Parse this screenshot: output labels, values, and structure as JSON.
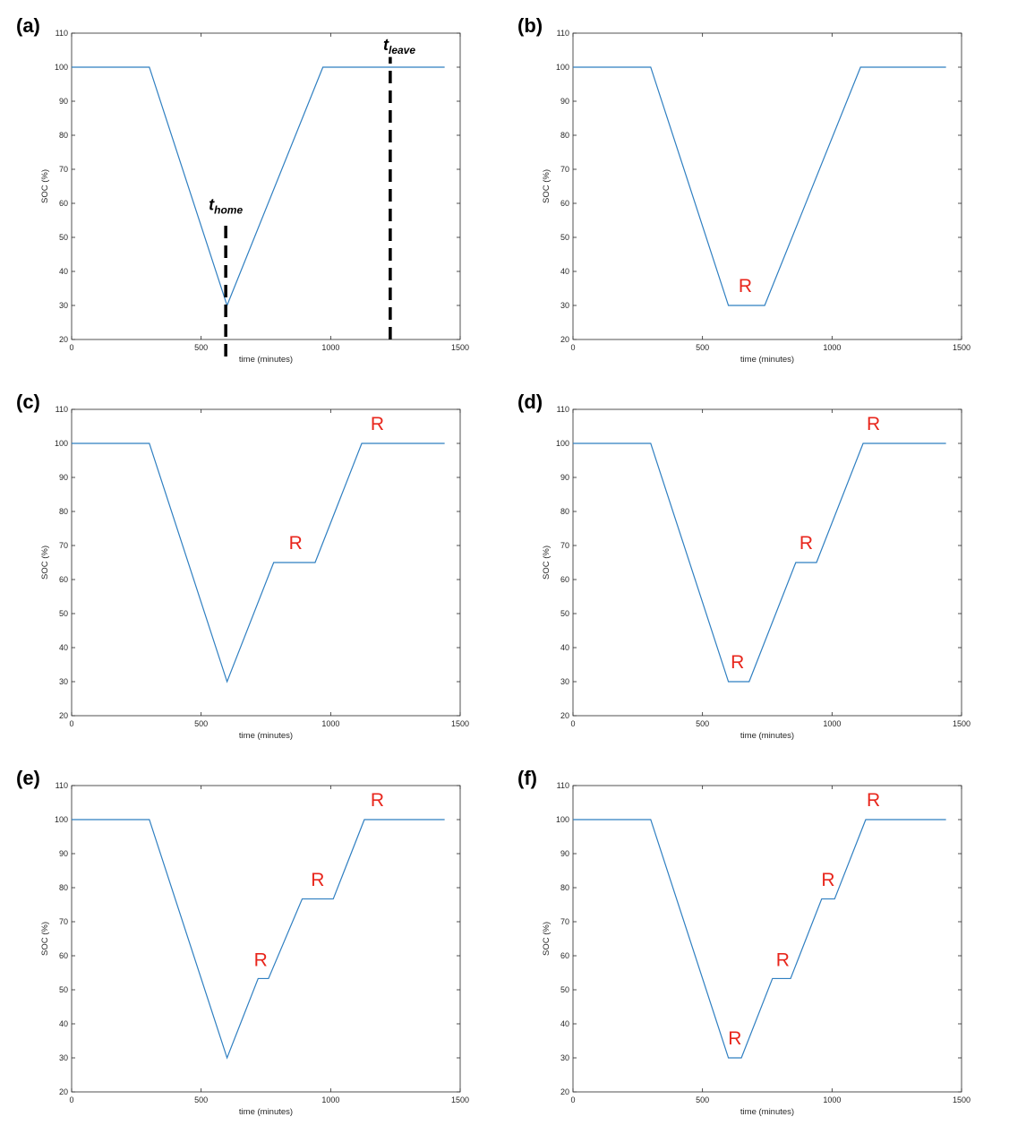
{
  "colors": {
    "line": "#2f7fc1",
    "annotation": "#e8261c",
    "marker": "#000000",
    "axis": "#262626"
  },
  "chart_data": [
    {
      "panel": "(a)",
      "type": "line",
      "xlabel": "time (minutes)",
      "ylabel": "SOC (%)",
      "xlim": [
        0,
        1500
      ],
      "ylim": [
        20,
        110
      ],
      "xticks": [
        0,
        500,
        1000,
        1500
      ],
      "yticks": [
        20,
        30,
        40,
        50,
        60,
        70,
        80,
        90,
        100,
        110
      ],
      "grid": false,
      "x": [
        0,
        300,
        600,
        970,
        1440
      ],
      "y": [
        100,
        100,
        30,
        100,
        100
      ],
      "annotations": [],
      "markers": [
        {
          "x": 595,
          "y_from": 15,
          "y_to": 55,
          "label": "t",
          "sub": "home",
          "label_x": 595,
          "label_y": 58
        },
        {
          "x": 1230,
          "y_from": 20,
          "y_to": 103,
          "label": "t",
          "sub": "leave",
          "label_x": 1265,
          "label_y": 105
        }
      ]
    },
    {
      "panel": "(b)",
      "type": "line",
      "xlabel": "time (minutes)",
      "ylabel": "SOC (%)",
      "xlim": [
        0,
        1500
      ],
      "ylim": [
        20,
        110
      ],
      "xticks": [
        0,
        500,
        1000,
        1500
      ],
      "yticks": [
        20,
        30,
        40,
        50,
        60,
        70,
        80,
        90,
        100,
        110
      ],
      "grid": false,
      "x": [
        0,
        300,
        600,
        740,
        1110,
        1440
      ],
      "y": [
        100,
        100,
        30,
        30,
        100,
        100
      ],
      "annotations": [
        {
          "text": "R",
          "x": 665,
          "y": 34
        }
      ],
      "markers": []
    },
    {
      "panel": "(c)",
      "type": "line",
      "xlabel": "time (minutes)",
      "ylabel": "SOC (%)",
      "xlim": [
        0,
        1500
      ],
      "ylim": [
        20,
        110
      ],
      "xticks": [
        0,
        500,
        1000,
        1500
      ],
      "yticks": [
        20,
        30,
        40,
        50,
        60,
        70,
        80,
        90,
        100,
        110
      ],
      "grid": false,
      "x": [
        0,
        300,
        600,
        780,
        940,
        1120,
        1440
      ],
      "y": [
        100,
        100,
        30,
        65,
        65,
        100,
        100
      ],
      "annotations": [
        {
          "text": "R",
          "x": 865,
          "y": 69
        },
        {
          "text": "R",
          "x": 1180,
          "y": 104
        }
      ],
      "markers": []
    },
    {
      "panel": "(d)",
      "type": "line",
      "xlabel": "time (minutes)",
      "ylabel": "SOC (%)",
      "xlim": [
        0,
        1500
      ],
      "ylim": [
        20,
        110
      ],
      "xticks": [
        0,
        500,
        1000,
        1500
      ],
      "yticks": [
        20,
        30,
        40,
        50,
        60,
        70,
        80,
        90,
        100,
        110
      ],
      "grid": false,
      "x": [
        0,
        300,
        600,
        680,
        860,
        940,
        1120,
        1440
      ],
      "y": [
        100,
        100,
        30,
        30,
        65,
        65,
        100,
        100
      ],
      "annotations": [
        {
          "text": "R",
          "x": 635,
          "y": 34
        },
        {
          "text": "R",
          "x": 900,
          "y": 69
        },
        {
          "text": "R",
          "x": 1160,
          "y": 104
        }
      ],
      "markers": []
    },
    {
      "panel": "(e)",
      "type": "line",
      "xlabel": "time (minutes)",
      "ylabel": "SOC (%)",
      "xlim": [
        0,
        1500
      ],
      "ylim": [
        20,
        110
      ],
      "xticks": [
        0,
        500,
        1000,
        1500
      ],
      "yticks": [
        20,
        30,
        40,
        50,
        60,
        70,
        80,
        90,
        100,
        110
      ],
      "grid": false,
      "x": [
        0,
        300,
        600,
        720,
        760,
        890,
        1010,
        1130,
        1440
      ],
      "y": [
        100,
        100,
        30,
        53.3,
        53.3,
        76.7,
        76.7,
        100,
        100
      ],
      "annotations": [
        {
          "text": "R",
          "x": 730,
          "y": 57
        },
        {
          "text": "R",
          "x": 950,
          "y": 80.5
        },
        {
          "text": "R",
          "x": 1180,
          "y": 104
        }
      ],
      "markers": []
    },
    {
      "panel": "(f)",
      "type": "line",
      "xlabel": "time (minutes)",
      "ylabel": "SOC (%)",
      "xlim": [
        0,
        1500
      ],
      "ylim": [
        20,
        110
      ],
      "xticks": [
        0,
        500,
        1000,
        1500
      ],
      "yticks": [
        20,
        30,
        40,
        50,
        60,
        70,
        80,
        90,
        100,
        110
      ],
      "grid": false,
      "x": [
        0,
        300,
        600,
        650,
        770,
        840,
        960,
        1010,
        1130,
        1440
      ],
      "y": [
        100,
        100,
        30,
        30,
        53.3,
        53.3,
        76.7,
        76.7,
        100,
        100
      ],
      "annotations": [
        {
          "text": "R",
          "x": 625,
          "y": 34
        },
        {
          "text": "R",
          "x": 810,
          "y": 57
        },
        {
          "text": "R",
          "x": 985,
          "y": 80.5
        },
        {
          "text": "R",
          "x": 1160,
          "y": 104
        }
      ],
      "markers": []
    }
  ]
}
